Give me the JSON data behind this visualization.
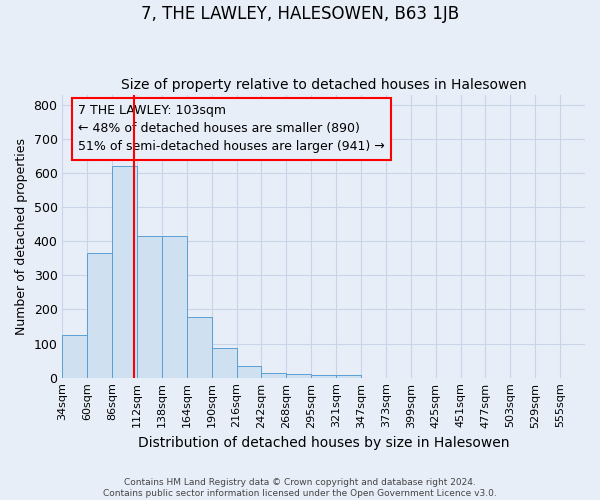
{
  "title": "7, THE LAWLEY, HALESOWEN, B63 1JB",
  "subtitle": "Size of property relative to detached houses in Halesowen",
  "xlabel": "Distribution of detached houses by size in Halesowen",
  "ylabel": "Number of detached properties",
  "bar_values": [
    125,
    365,
    620,
    415,
    415,
    178,
    88,
    35,
    15,
    10,
    8,
    8,
    0,
    0,
    0,
    0,
    0,
    0,
    0,
    0,
    0
  ],
  "categories": [
    "34sqm",
    "60sqm",
    "86sqm",
    "112sqm",
    "138sqm",
    "164sqm",
    "190sqm",
    "216sqm",
    "242sqm",
    "268sqm",
    "295sqm",
    "321sqm",
    "347sqm",
    "373sqm",
    "399sqm",
    "425sqm",
    "451sqm",
    "477sqm",
    "503sqm",
    "529sqm",
    "555sqm"
  ],
  "bar_color": "#cfe0f0",
  "bar_edge_color": "#5a9fd4",
  "red_line_x": 2.88,
  "annotation_box_text": "7 THE LAWLEY: 103sqm\n← 48% of detached houses are smaller (890)\n51% of semi-detached houses are larger (941) →",
  "ylim": [
    0,
    830
  ],
  "yticks": [
    0,
    100,
    200,
    300,
    400,
    500,
    600,
    700,
    800
  ],
  "footer": "Contains HM Land Registry data © Crown copyright and database right 2024.\nContains public sector information licensed under the Open Government Licence v3.0.",
  "bg_color": "#e8eef8",
  "grid_color": "#c8d4e8",
  "title_fontsize": 12,
  "subtitle_fontsize": 10,
  "annotation_fontsize": 9,
  "ylabel_fontsize": 9,
  "xlabel_fontsize": 10,
  "tick_fontsize": 8
}
